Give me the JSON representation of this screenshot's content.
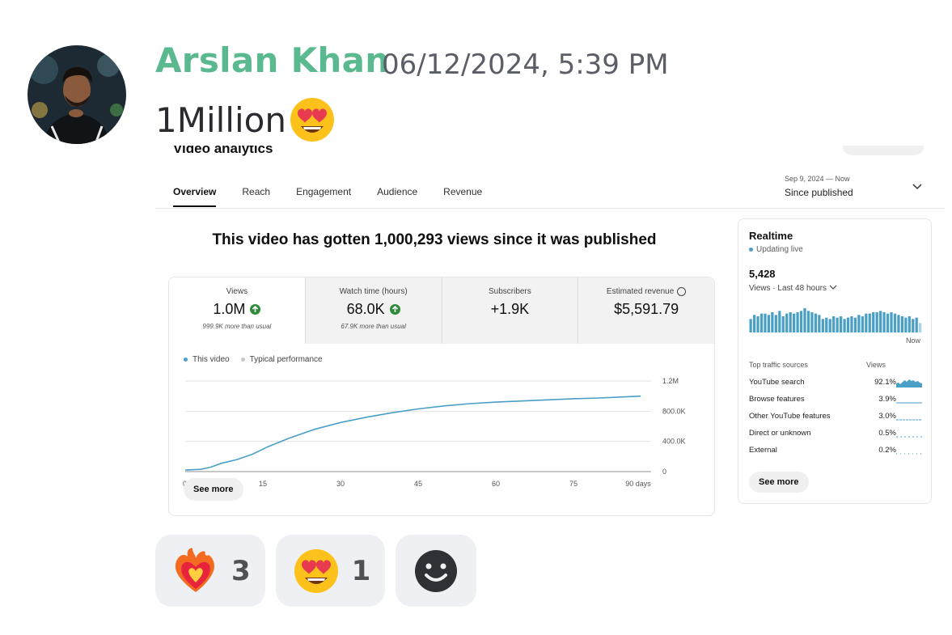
{
  "message": {
    "author": "Arslan Khan",
    "timestamp": "06/12/2024, 5:39 PM",
    "text": "1Million",
    "text_emoji": "smiling-face-with-heart-eyes",
    "author_color": "#5bb98f"
  },
  "screenshot": {
    "page_title": "Video analytics",
    "tabs": [
      "Overview",
      "Reach",
      "Engagement",
      "Audience",
      "Revenue"
    ],
    "active_tab": "Overview",
    "date_range": "Sep 9, 2024 — Now",
    "date_label": "Since published",
    "headline": "This video has gotten 1,000,293 views since it was published",
    "metrics": [
      {
        "label": "Views",
        "value": "1.0M",
        "sub": "999.9K more than usual",
        "trend": "up"
      },
      {
        "label": "Watch time (hours)",
        "value": "68.0K",
        "sub": "67.9K more than usual",
        "trend": "up"
      },
      {
        "label": "Subscribers",
        "value": "+1.9K",
        "sub": "",
        "trend": "none"
      },
      {
        "label": "Estimated revenue",
        "value": "$5,591.79",
        "sub": "",
        "trend": "none"
      }
    ],
    "legend": {
      "this_video": "This video",
      "typical": "Typical performance"
    },
    "see_more": "See more",
    "accent_color": "#4a9fc7",
    "up_color": "#2e8b3a"
  },
  "chart_data": {
    "type": "line",
    "title": "",
    "xlabel": "",
    "ylabel": "",
    "x_ticks": [
      "0",
      "15",
      "30",
      "45",
      "60",
      "75",
      "90 days"
    ],
    "y_ticks": [
      "0",
      "400.0K",
      "800.0K",
      "1.2M"
    ],
    "ylim": [
      0,
      1200000
    ],
    "xlim": [
      0,
      90
    ],
    "series": [
      {
        "name": "This video",
        "x": [
          0,
          3,
          5,
          7,
          10,
          13,
          16,
          20,
          25,
          30,
          35,
          40,
          45,
          50,
          55,
          60,
          65,
          70,
          75,
          80,
          85,
          88
        ],
        "y": [
          20000,
          30000,
          60000,
          110000,
          160000,
          230000,
          330000,
          440000,
          560000,
          650000,
          720000,
          780000,
          830000,
          870000,
          900000,
          920000,
          935000,
          950000,
          965000,
          975000,
          990000,
          1000000
        ]
      }
    ],
    "grid": true,
    "legend": "top-left"
  },
  "realtime": {
    "title": "Realtime",
    "status": "Updating live",
    "value": "5,428",
    "period": "Views · Last 48 hours",
    "now_label": "Now",
    "bars": [
      10,
      13,
      12,
      14,
      14,
      13,
      15,
      13,
      16,
      12,
      14,
      15,
      14,
      15,
      16,
      18,
      16,
      15,
      14,
      13,
      10,
      11,
      10,
      12,
      11,
      12,
      10,
      11,
      12,
      11,
      13,
      12,
      14,
      14,
      15,
      15,
      16,
      15,
      14,
      15,
      14,
      13,
      12,
      11,
      12,
      10,
      11,
      7
    ],
    "sources_header": "Top traffic sources",
    "views_header": "Views",
    "sources": [
      {
        "name": "YouTube search",
        "pct": "92.1%"
      },
      {
        "name": "Browse features",
        "pct": "3.9%"
      },
      {
        "name": "Other YouTube features",
        "pct": "3.0%"
      },
      {
        "name": "Direct or unknown",
        "pct": "0.5%"
      },
      {
        "name": "External",
        "pct": "0.2%"
      }
    ],
    "see_more": "See more"
  },
  "reactions": [
    {
      "emoji": "heart-on-fire",
      "count": "3"
    },
    {
      "emoji": "smiling-face-with-heart-eyes",
      "count": "1"
    },
    {
      "emoji": "add-reaction",
      "count": ""
    }
  ]
}
